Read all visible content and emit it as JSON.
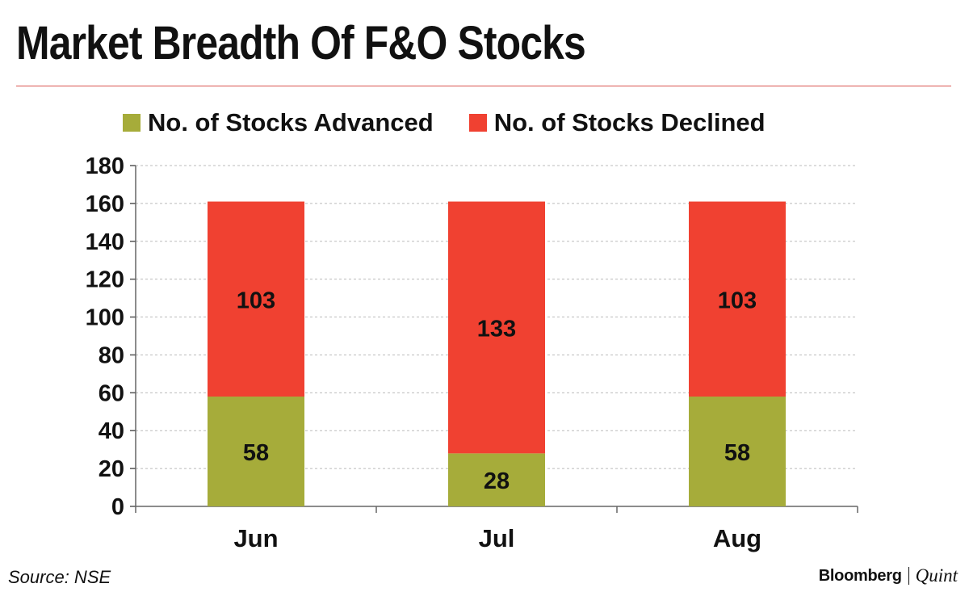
{
  "header": {
    "title": "Market Breadth Of F&O Stocks"
  },
  "footer": {
    "source": "Source: NSE",
    "brand_main": "Bloomberg",
    "brand_sub": "Quint"
  },
  "colors": {
    "advanced": "#a6ac3a",
    "declined": "#f04131",
    "rule": "#d9534f",
    "grid": "#bbbbbb"
  },
  "chart_data": {
    "type": "bar",
    "stacked": true,
    "title": "Market Breadth Of F&O Stocks",
    "categories": [
      "Jun",
      "Jul",
      "Aug"
    ],
    "series": [
      {
        "name": "No. of Stocks Advanced",
        "values": [
          58,
          28,
          58
        ]
      },
      {
        "name": "No. of Stocks Declined",
        "values": [
          103,
          133,
          103
        ]
      }
    ],
    "ylim": [
      0,
      180
    ],
    "yticks": [
      0,
      20,
      40,
      60,
      80,
      100,
      120,
      140,
      160,
      180
    ],
    "grid": true,
    "legend": "top"
  }
}
